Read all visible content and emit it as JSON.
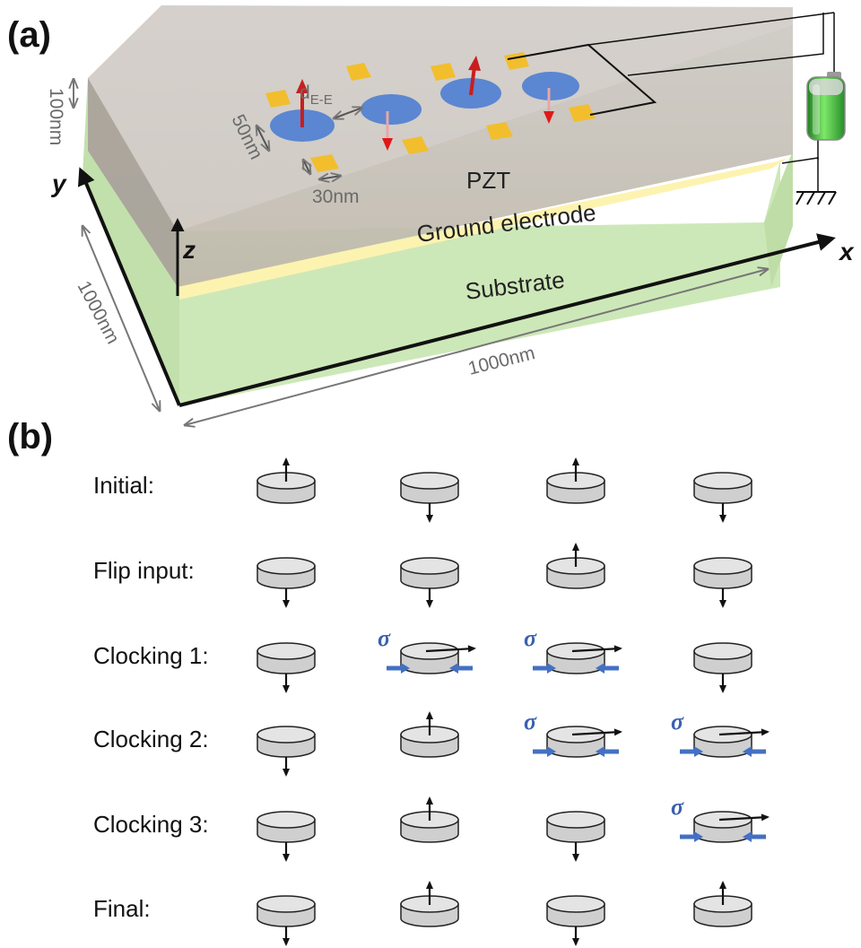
{
  "panel_a": {
    "label": "(a)",
    "dim_thickness": "100nm",
    "dim_diameter": "50nm",
    "dim_electrode": "30nm",
    "dim_spacing_main": "d",
    "dim_spacing_sub": "E-E",
    "dim_depth": "1000nm",
    "dim_width": "1000nm",
    "layer_pzt": "PZT",
    "layer_ground": "Ground electrode",
    "layer_substrate": "Substrate",
    "axis_x": "x",
    "axis_y": "y",
    "axis_z": "z",
    "colors": {
      "substrate": "#c9e6b4",
      "pzt": "#c8c3b8",
      "ground": "#fdf3b0",
      "electrode": "#f2be2e",
      "nanodisk": "#5b86d1",
      "up_arrow": "#c81e1e",
      "battery": "#3fbf3a"
    },
    "nanodisk_states": [
      "up",
      "down",
      "up",
      "down"
    ]
  },
  "panel_b": {
    "label": "(b)",
    "sigma_symbol": "σ",
    "rows": [
      {
        "label": "Initial:",
        "states": [
          "up",
          "down",
          "up",
          "down"
        ],
        "stress": [
          false,
          false,
          false,
          false
        ]
      },
      {
        "label": "Flip input:",
        "states": [
          "down",
          "down",
          "up",
          "down"
        ],
        "stress": [
          false,
          false,
          false,
          false
        ]
      },
      {
        "label": "Clocking 1:",
        "states": [
          "down",
          "right",
          "right",
          "down"
        ],
        "stress": [
          false,
          true,
          true,
          false
        ]
      },
      {
        "label": "Clocking 2:",
        "states": [
          "down",
          "up",
          "right",
          "right"
        ],
        "stress": [
          false,
          false,
          true,
          true
        ]
      },
      {
        "label": "Clocking 3:",
        "states": [
          "down",
          "up",
          "down",
          "right"
        ],
        "stress": [
          false,
          false,
          false,
          true
        ]
      },
      {
        "label": "Final:",
        "states": [
          "down",
          "up",
          "down",
          "up"
        ],
        "stress": [
          false,
          false,
          false,
          false
        ]
      }
    ],
    "colors": {
      "disk": "#cfcfcf",
      "disk_top": "#e4e4e4",
      "stress_arrow": "#4470c4"
    }
  }
}
